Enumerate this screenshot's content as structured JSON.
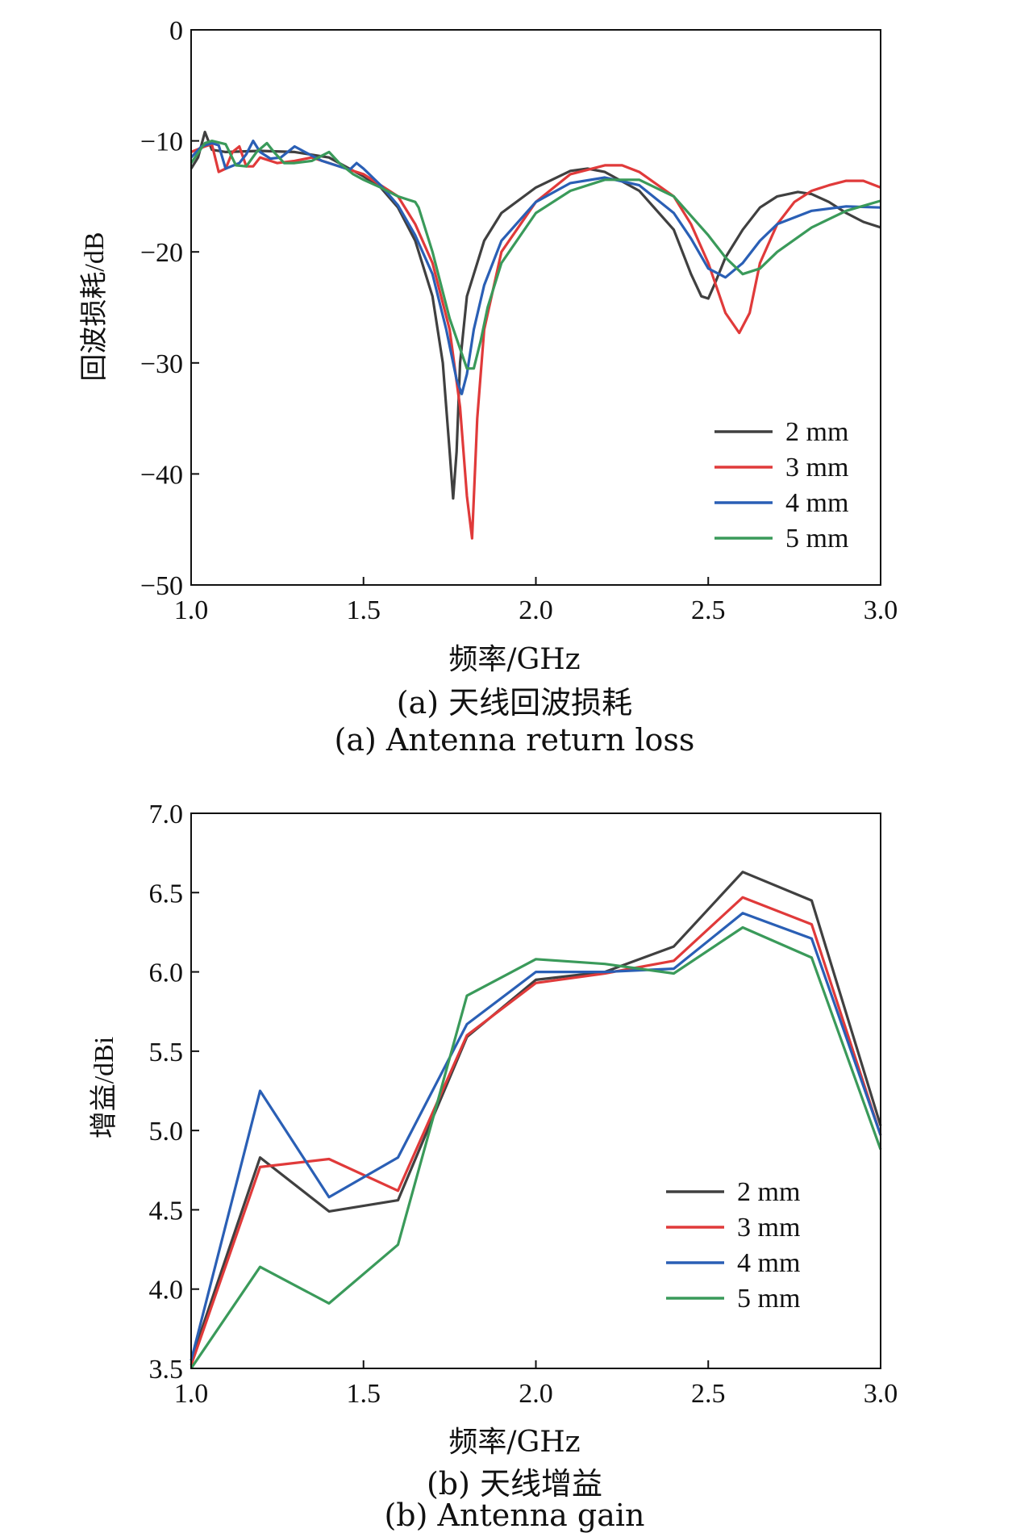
{
  "chart_data": [
    {
      "type": "line",
      "caption_cn": "(a) 天线回波损耗",
      "caption_en": "(a) Antenna return loss",
      "xlabel": "频率/GHz",
      "ylabel": "回波损耗/dB",
      "xlim": [
        1.0,
        3.0
      ],
      "ylim": [
        -50,
        0
      ],
      "xticks": [
        "1.0",
        "1.5",
        "2.0",
        "2.5",
        "3.0"
      ],
      "yticks": [
        "0",
        "−10",
        "−20",
        "−30",
        "−40",
        "−50"
      ],
      "legend_position": "bottom-right",
      "series": [
        {
          "name": "2 mm",
          "color": "#404040",
          "points": [
            [
              1.0,
              -12.5
            ],
            [
              1.02,
              -11.5
            ],
            [
              1.04,
              -9.2
            ],
            [
              1.06,
              -10.8
            ],
            [
              1.1,
              -11.0
            ],
            [
              1.2,
              -10.9
            ],
            [
              1.3,
              -11.0
            ],
            [
              1.4,
              -11.5
            ],
            [
              1.5,
              -13.2
            ],
            [
              1.55,
              -14.2
            ],
            [
              1.6,
              -16.0
            ],
            [
              1.65,
              -19.0
            ],
            [
              1.7,
              -24.0
            ],
            [
              1.73,
              -30.0
            ],
            [
              1.75,
              -38.0
            ],
            [
              1.76,
              -42.2
            ],
            [
              1.77,
              -38.0
            ],
            [
              1.78,
              -30.0
            ],
            [
              1.8,
              -24.0
            ],
            [
              1.85,
              -19.0
            ],
            [
              1.9,
              -16.5
            ],
            [
              2.0,
              -14.2
            ],
            [
              2.1,
              -12.7
            ],
            [
              2.15,
              -12.5
            ],
            [
              2.2,
              -12.8
            ],
            [
              2.3,
              -14.5
            ],
            [
              2.4,
              -18.0
            ],
            [
              2.45,
              -22.0
            ],
            [
              2.48,
              -24.0
            ],
            [
              2.5,
              -24.2
            ],
            [
              2.52,
              -22.8
            ],
            [
              2.55,
              -20.5
            ],
            [
              2.6,
              -18.0
            ],
            [
              2.65,
              -16.0
            ],
            [
              2.7,
              -15.0
            ],
            [
              2.76,
              -14.6
            ],
            [
              2.8,
              -14.8
            ],
            [
              2.85,
              -15.5
            ],
            [
              2.9,
              -16.5
            ],
            [
              2.95,
              -17.3
            ],
            [
              3.0,
              -17.8
            ]
          ]
        },
        {
          "name": "3 mm",
          "color": "#e03a3a",
          "points": [
            [
              1.0,
              -11.0
            ],
            [
              1.04,
              -10.5
            ],
            [
              1.06,
              -10.3
            ],
            [
              1.08,
              -12.8
            ],
            [
              1.1,
              -12.5
            ],
            [
              1.12,
              -11.0
            ],
            [
              1.14,
              -10.5
            ],
            [
              1.16,
              -12.3
            ],
            [
              1.18,
              -12.3
            ],
            [
              1.2,
              -11.5
            ],
            [
              1.25,
              -12.0
            ],
            [
              1.3,
              -11.8
            ],
            [
              1.35,
              -11.5
            ],
            [
              1.4,
              -12.0
            ],
            [
              1.5,
              -13.0
            ],
            [
              1.6,
              -15.0
            ],
            [
              1.65,
              -17.5
            ],
            [
              1.7,
              -21.0
            ],
            [
              1.75,
              -27.0
            ],
            [
              1.78,
              -34.0
            ],
            [
              1.8,
              -42.0
            ],
            [
              1.815,
              -45.8
            ],
            [
              1.83,
              -35.0
            ],
            [
              1.85,
              -27.0
            ],
            [
              1.9,
              -20.0
            ],
            [
              2.0,
              -15.5
            ],
            [
              2.1,
              -13.0
            ],
            [
              2.2,
              -12.2
            ],
            [
              2.25,
              -12.2
            ],
            [
              2.3,
              -12.8
            ],
            [
              2.4,
              -15.0
            ],
            [
              2.45,
              -17.5
            ],
            [
              2.5,
              -21.0
            ],
            [
              2.55,
              -25.5
            ],
            [
              2.59,
              -27.3
            ],
            [
              2.62,
              -25.5
            ],
            [
              2.65,
              -21.0
            ],
            [
              2.7,
              -17.5
            ],
            [
              2.75,
              -15.5
            ],
            [
              2.8,
              -14.5
            ],
            [
              2.85,
              -14.0
            ],
            [
              2.9,
              -13.6
            ],
            [
              2.95,
              -13.6
            ],
            [
              3.0,
              -14.2
            ]
          ]
        },
        {
          "name": "4 mm",
          "color": "#2a5fb5",
          "points": [
            [
              1.0,
              -11.5
            ],
            [
              1.03,
              -10.5
            ],
            [
              1.06,
              -10.2
            ],
            [
              1.08,
              -10.4
            ],
            [
              1.1,
              -12.5
            ],
            [
              1.14,
              -12.0
            ],
            [
              1.16,
              -11.2
            ],
            [
              1.18,
              -10.0
            ],
            [
              1.2,
              -11.0
            ],
            [
              1.23,
              -11.6
            ],
            [
              1.26,
              -11.5
            ],
            [
              1.3,
              -10.5
            ],
            [
              1.33,
              -11.0
            ],
            [
              1.38,
              -11.8
            ],
            [
              1.42,
              -12.2
            ],
            [
              1.46,
              -12.6
            ],
            [
              1.48,
              -12.0
            ],
            [
              1.5,
              -12.5
            ],
            [
              1.55,
              -14.0
            ],
            [
              1.6,
              -15.8
            ],
            [
              1.65,
              -18.5
            ],
            [
              1.7,
              -22.0
            ],
            [
              1.74,
              -27.0
            ],
            [
              1.77,
              -31.5
            ],
            [
              1.785,
              -32.8
            ],
            [
              1.8,
              -31.0
            ],
            [
              1.82,
              -27.0
            ],
            [
              1.85,
              -23.0
            ],
            [
              1.9,
              -19.0
            ],
            [
              2.0,
              -15.5
            ],
            [
              2.1,
              -13.8
            ],
            [
              2.2,
              -13.3
            ],
            [
              2.3,
              -14.0
            ],
            [
              2.4,
              -16.5
            ],
            [
              2.45,
              -18.8
            ],
            [
              2.5,
              -21.5
            ],
            [
              2.55,
              -22.3
            ],
            [
              2.6,
              -21.0
            ],
            [
              2.65,
              -19.0
            ],
            [
              2.7,
              -17.5
            ],
            [
              2.8,
              -16.3
            ],
            [
              2.9,
              -15.9
            ],
            [
              3.0,
              -16.0
            ]
          ]
        },
        {
          "name": "5 mm",
          "color": "#3a9a5a",
          "points": [
            [
              1.0,
              -12.0
            ],
            [
              1.04,
              -10.2
            ],
            [
              1.06,
              -10.0
            ],
            [
              1.1,
              -10.3
            ],
            [
              1.13,
              -12.2
            ],
            [
              1.16,
              -12.3
            ],
            [
              1.19,
              -11.0
            ],
            [
              1.22,
              -10.2
            ],
            [
              1.24,
              -11.0
            ],
            [
              1.27,
              -12.0
            ],
            [
              1.3,
              -12.0
            ],
            [
              1.35,
              -11.8
            ],
            [
              1.4,
              -11.0
            ],
            [
              1.43,
              -12.0
            ],
            [
              1.47,
              -13.0
            ],
            [
              1.5,
              -13.5
            ],
            [
              1.55,
              -14.2
            ],
            [
              1.6,
              -15.0
            ],
            [
              1.65,
              -15.5
            ],
            [
              1.66,
              -16.0
            ],
            [
              1.7,
              -20.0
            ],
            [
              1.75,
              -26.0
            ],
            [
              1.8,
              -30.5
            ],
            [
              1.82,
              -30.5
            ],
            [
              1.84,
              -28.0
            ],
            [
              1.86,
              -25.0
            ],
            [
              1.9,
              -21.0
            ],
            [
              2.0,
              -16.5
            ],
            [
              2.1,
              -14.5
            ],
            [
              2.2,
              -13.5
            ],
            [
              2.3,
              -13.5
            ],
            [
              2.4,
              -15.0
            ],
            [
              2.5,
              -18.5
            ],
            [
              2.55,
              -20.5
            ],
            [
              2.6,
              -22.0
            ],
            [
              2.65,
              -21.5
            ],
            [
              2.7,
              -20.0
            ],
            [
              2.8,
              -17.8
            ],
            [
              2.9,
              -16.3
            ],
            [
              3.0,
              -15.4
            ]
          ]
        }
      ]
    },
    {
      "type": "line",
      "caption_cn": "(b) 天线增益",
      "caption_en": "(b) Antenna gain",
      "xlabel": "频率/GHz",
      "ylabel": "增益/dBi",
      "xlim": [
        1.0,
        3.0
      ],
      "ylim": [
        3.5,
        7.0
      ],
      "xticks": [
        "1.0",
        "1.5",
        "2.0",
        "2.5",
        "3.0"
      ],
      "yticks": [
        "7.0",
        "6.5",
        "6.0",
        "5.5",
        "5.0",
        "4.5",
        "4.0",
        "3.5"
      ],
      "legend_position": "bottom-right",
      "series": [
        {
          "name": "2 mm",
          "color": "#404040",
          "points": [
            [
              1.0,
              3.55
            ],
            [
              1.2,
              4.83
            ],
            [
              1.4,
              4.49
            ],
            [
              1.6,
              4.56
            ],
            [
              1.8,
              5.59
            ],
            [
              2.0,
              5.95
            ],
            [
              2.2,
              6.0
            ],
            [
              2.4,
              6.16
            ],
            [
              2.6,
              6.63
            ],
            [
              2.8,
              6.45
            ],
            [
              3.0,
              5.03
            ]
          ]
        },
        {
          "name": "3 mm",
          "color": "#e03a3a",
          "points": [
            [
              1.0,
              3.52
            ],
            [
              1.2,
              4.77
            ],
            [
              1.4,
              4.82
            ],
            [
              1.6,
              4.62
            ],
            [
              1.8,
              5.6
            ],
            [
              2.0,
              5.93
            ],
            [
              2.2,
              5.99
            ],
            [
              2.4,
              6.07
            ],
            [
              2.6,
              6.47
            ],
            [
              2.8,
              6.3
            ],
            [
              3.0,
              4.97
            ]
          ]
        },
        {
          "name": "4 mm",
          "color": "#2a5fb5",
          "points": [
            [
              1.0,
              3.55
            ],
            [
              1.2,
              5.25
            ],
            [
              1.4,
              4.58
            ],
            [
              1.6,
              4.83
            ],
            [
              1.8,
              5.67
            ],
            [
              2.0,
              6.0
            ],
            [
              2.2,
              6.0
            ],
            [
              2.4,
              6.02
            ],
            [
              2.6,
              6.37
            ],
            [
              2.8,
              6.21
            ],
            [
              3.0,
              4.97
            ]
          ]
        },
        {
          "name": "5 mm",
          "color": "#3a9a5a",
          "points": [
            [
              1.0,
              3.5
            ],
            [
              1.2,
              4.14
            ],
            [
              1.4,
              3.91
            ],
            [
              1.6,
              4.28
            ],
            [
              1.8,
              5.85
            ],
            [
              2.0,
              6.08
            ],
            [
              2.2,
              6.05
            ],
            [
              2.4,
              5.99
            ],
            [
              2.6,
              6.28
            ],
            [
              2.8,
              6.09
            ],
            [
              3.0,
              4.88
            ]
          ]
        }
      ]
    }
  ]
}
